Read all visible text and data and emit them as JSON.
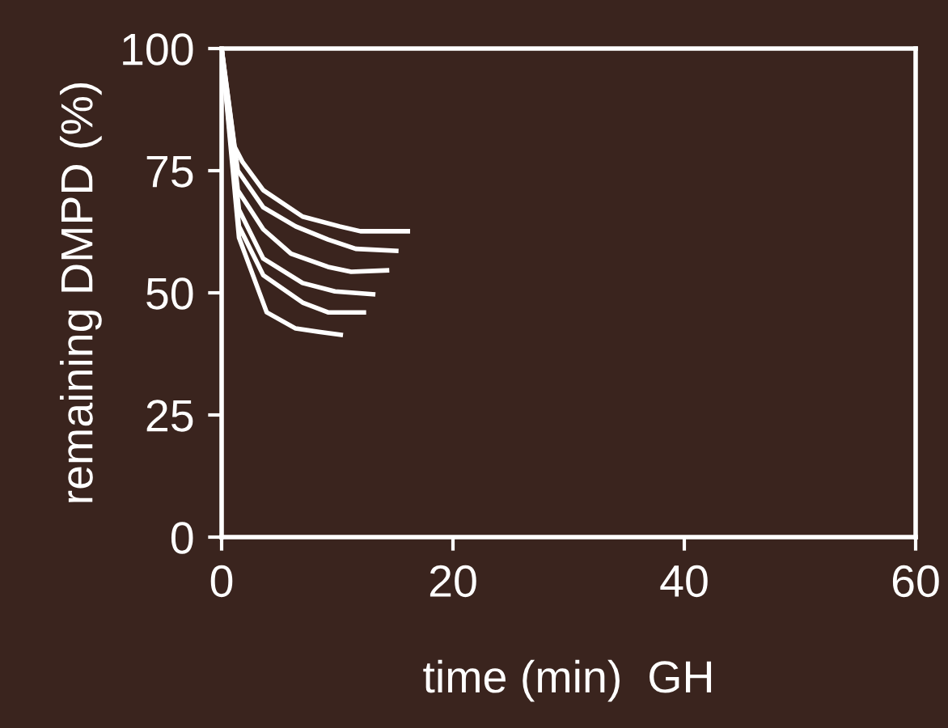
{
  "chart_data": {
    "type": "line",
    "xlabel": "time (min)  GH",
    "ylabel": "remaining DMPD (%)",
    "xlim": [
      0,
      60
    ],
    "xticks": [
      0,
      20,
      40,
      60
    ],
    "ylim": [
      0,
      100
    ],
    "yticks": [
      0,
      25,
      50,
      75,
      100
    ],
    "grid": false,
    "marker": "none",
    "line_style": "solid",
    "series": [
      {
        "color": "#ffffff",
        "x": [
          0,
          1.1,
          1.8,
          3.6,
          7,
          10.2,
          12,
          16.1
        ],
        "values": [
          100,
          80,
          76.8,
          71,
          65.6,
          63.6,
          62.6,
          62.6
        ]
      },
      {
        "color": "#ffffff",
        "x": [
          0,
          1.4,
          3.6,
          6.4,
          9.2,
          11.6,
          15.1
        ],
        "values": [
          100,
          75,
          67.5,
          63.6,
          60.9,
          59,
          58.6
        ]
      },
      {
        "color": "#ffffff",
        "x": [
          0,
          1.4,
          3.6,
          6,
          9.2,
          11.2,
          14.3
        ],
        "values": [
          100,
          71,
          63,
          58,
          55.3,
          54.3,
          54.6
        ]
      },
      {
        "color": "#ffffff",
        "x": [
          0,
          1.5,
          3.6,
          7,
          9.8,
          13.1
        ],
        "values": [
          100,
          67,
          57,
          52,
          50.3,
          49.7
        ]
      },
      {
        "color": "#ffffff",
        "x": [
          0,
          1.5,
          3.6,
          7,
          9.2,
          12.3
        ],
        "values": [
          100,
          63.6,
          53.6,
          48,
          46,
          46
        ]
      },
      {
        "color": "#ffffff",
        "x": [
          0,
          1.5,
          3.9,
          6.4,
          8.4,
          10.3
        ],
        "values": [
          100,
          61.3,
          46,
          42.7,
          42,
          41.4
        ]
      }
    ]
  }
}
